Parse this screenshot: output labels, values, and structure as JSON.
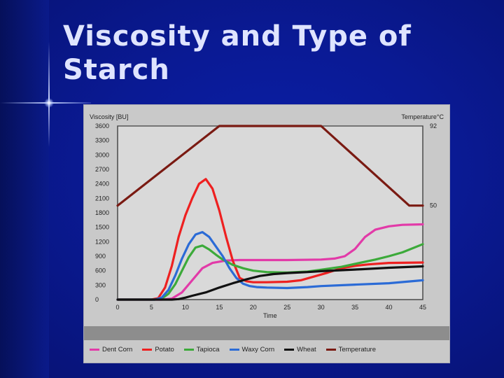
{
  "slide": {
    "title": "Viscosity and Type of Starch"
  },
  "chart_data": {
    "type": "line",
    "title": "",
    "xlabel": "Time",
    "ylabel_left": "Viscosity [BU]",
    "ylabel_right": "Temperature°C",
    "xlim": [
      0,
      45
    ],
    "ylim": [
      0,
      3600
    ],
    "x_ticks": [
      "0",
      "5",
      "10",
      "15",
      "20",
      "25",
      "30",
      "35",
      "40",
      "45"
    ],
    "y_ticks": [
      "0",
      "300",
      "600",
      "900",
      "1200",
      "1500",
      "1800",
      "2100",
      "2400",
      "2700",
      "3000",
      "3300",
      "3600"
    ],
    "right_ticks": [
      {
        "label": "92",
        "at_viscosity": 3600
      },
      {
        "label": "50",
        "at_viscosity": 1950
      }
    ],
    "series": [
      {
        "name": "Dent Corn",
        "color": "#e23aa8",
        "x": [
          0,
          5,
          6.5,
          8,
          9.5,
          11,
          12.5,
          14,
          16,
          18,
          20,
          25,
          30,
          32,
          33.5,
          35,
          36.5,
          38,
          40,
          42,
          45
        ],
        "y": [
          0,
          0,
          0,
          20,
          150,
          400,
          650,
          760,
          810,
          820,
          820,
          820,
          830,
          850,
          900,
          1050,
          1300,
          1450,
          1520,
          1550,
          1560
        ]
      },
      {
        "name": "Potato",
        "color": "#ee2020",
        "x": [
          0,
          5,
          6,
          7,
          8,
          9,
          10,
          11,
          12,
          13,
          14,
          15,
          16,
          17,
          18,
          19,
          20,
          22,
          25,
          27,
          29,
          31,
          33,
          35,
          37,
          40,
          45
        ],
        "y": [
          0,
          0,
          30,
          250,
          700,
          1300,
          1750,
          2100,
          2400,
          2500,
          2300,
          1850,
          1300,
          800,
          450,
          380,
          360,
          360,
          370,
          400,
          480,
          560,
          650,
          700,
          730,
          760,
          770
        ]
      },
      {
        "name": "Tapioca",
        "color": "#3caa3a",
        "x": [
          0,
          5.5,
          6.5,
          7.5,
          8.5,
          9.5,
          10.5,
          11.5,
          12.5,
          13.5,
          14.5,
          15.5,
          17,
          18.5,
          20,
          22,
          25,
          28,
          30,
          33,
          35,
          38,
          40,
          42,
          45
        ],
        "y": [
          0,
          0,
          20,
          120,
          320,
          600,
          880,
          1080,
          1120,
          1040,
          930,
          830,
          720,
          650,
          600,
          570,
          560,
          580,
          620,
          680,
          740,
          830,
          900,
          980,
          1150
        ]
      },
      {
        "name": "Waxy Corn",
        "color": "#2b6bd6",
        "x": [
          0,
          5.5,
          6.5,
          7.5,
          8.5,
          9.5,
          10.5,
          11.5,
          12.5,
          13.5,
          14.5,
          15.5,
          16.5,
          17.5,
          18.5,
          19.5,
          20.5,
          22,
          25,
          28,
          30,
          35,
          40,
          45
        ],
        "y": [
          0,
          0,
          40,
          200,
          500,
          850,
          1150,
          1350,
          1400,
          1300,
          1100,
          900,
          650,
          450,
          330,
          280,
          260,
          250,
          240,
          260,
          280,
          310,
          340,
          400
        ]
      },
      {
        "name": "Wheat",
        "color": "#111111",
        "x": [
          0,
          8,
          9,
          10,
          11,
          13,
          15,
          17,
          19,
          21,
          23,
          25,
          28,
          30,
          33,
          36,
          40,
          45
        ],
        "y": [
          0,
          0,
          10,
          40,
          80,
          150,
          250,
          340,
          420,
          490,
          530,
          550,
          570,
          590,
          610,
          630,
          660,
          690
        ]
      },
      {
        "name": "Temperature",
        "color": "#7a1a12",
        "x": [
          0,
          15,
          30,
          43,
          45
        ],
        "y": [
          1950,
          3600,
          3600,
          1950,
          1950
        ]
      }
    ],
    "legend_position": "bottom"
  }
}
